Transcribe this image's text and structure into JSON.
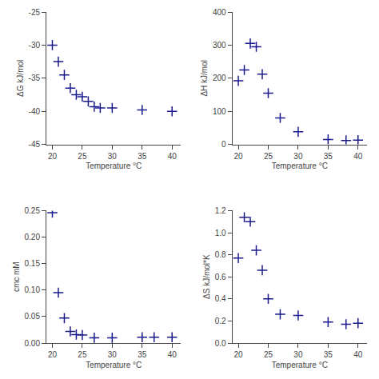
{
  "chart_data": [
    {
      "type": "scatter",
      "x": [
        20,
        21,
        22,
        23,
        24,
        25,
        26,
        27,
        28,
        30,
        35,
        40
      ],
      "values": [
        -30.0,
        -32.5,
        -34.5,
        -36.5,
        -37.5,
        -37.8,
        -38.5,
        -39.3,
        -39.5,
        -39.5,
        -39.8,
        -40.0
      ],
      "xlabel": "Temperature °C",
      "ylabel": "ΔG kJ/mol",
      "xlim": [
        19,
        41.5
      ],
      "xticks": [
        20,
        25,
        30,
        35,
        40
      ],
      "ylim": [
        -45,
        -25
      ],
      "yticks": [
        -45,
        -40,
        -35,
        -30,
        -25
      ],
      "color": "#1a1a8c",
      "marker": "plus",
      "grid": false
    },
    {
      "type": "scatter",
      "x": [
        20,
        21,
        22,
        23,
        24,
        25,
        27,
        30,
        35,
        38,
        40
      ],
      "values": [
        192,
        225,
        305,
        295,
        212,
        155,
        80,
        38,
        15,
        12,
        13
      ],
      "xlabel": "Temperature °C",
      "ylabel": "ΔH kJ/mol",
      "xlim": [
        19,
        41.5
      ],
      "xticks": [
        20,
        25,
        30,
        35,
        40
      ],
      "ylim": [
        0,
        400
      ],
      "yticks": [
        0,
        100,
        200,
        300,
        400
      ],
      "color": "#1a1a8c",
      "marker": "plus",
      "grid": false
    },
    {
      "type": "scatter",
      "x": [
        20,
        21,
        22,
        23,
        24,
        25,
        27,
        30,
        35,
        37,
        40
      ],
      "values": [
        0.246,
        0.095,
        0.047,
        0.022,
        0.016,
        0.015,
        0.01,
        0.01,
        0.011,
        0.011,
        0.011
      ],
      "xlabel": "Temperature °C",
      "ylabel": "cmc mM",
      "xlim": [
        19,
        41.5
      ],
      "xticks": [
        20,
        25,
        30,
        35,
        40
      ],
      "ylim": [
        0,
        0.25
      ],
      "yticks": [
        {
          "value": 0,
          "label": "0.00"
        },
        0.05,
        {
          "value": 0.1,
          "label": "0.10"
        },
        0.15,
        {
          "value": 0.2,
          "label": "0.20"
        },
        0.25
      ],
      "color": "#1a1a8c",
      "marker": "plus",
      "grid": false
    },
    {
      "type": "scatter",
      "x": [
        20,
        21,
        22,
        23,
        24,
        25,
        27,
        30,
        35,
        38,
        40
      ],
      "values": [
        0.77,
        1.14,
        1.1,
        0.84,
        0.66,
        0.4,
        0.26,
        0.25,
        0.19,
        0.17,
        0.18
      ],
      "xlabel": "Temperature °C",
      "ylabel": "ΔS kJ/mol*K",
      "xlim": [
        19,
        41.5
      ],
      "xticks": [
        20,
        25,
        30,
        35,
        40
      ],
      "ylim": [
        0,
        1.2
      ],
      "yticks": [
        {
          "value": 0,
          "label": "0.0"
        },
        0.2,
        0.4,
        0.6,
        0.8,
        {
          "value": 1.0,
          "label": "1.0"
        },
        1.2
      ],
      "color": "#1a1a8c",
      "marker": "plus",
      "grid": false
    }
  ]
}
